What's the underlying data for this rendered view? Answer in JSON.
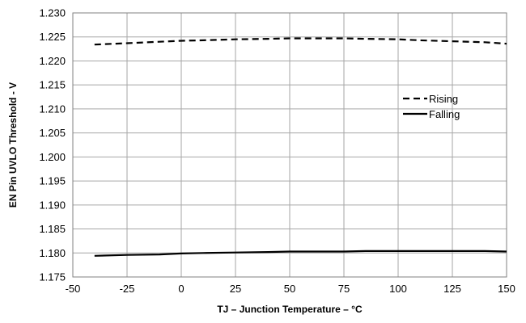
{
  "chart_data": {
    "type": "line",
    "title": "",
    "xlabel": "TJ – Junction Temperature – °C",
    "ylabel": "EN Pin UVLO Threshold - V",
    "xlim": [
      -50,
      150
    ],
    "ylim": [
      1.175,
      1.23
    ],
    "x_ticks": [
      "-50",
      "-25",
      "0",
      "25",
      "50",
      "75",
      "100",
      "125",
      "150"
    ],
    "y_ticks": [
      "1.175",
      "1.180",
      "1.185",
      "1.190",
      "1.195",
      "1.200",
      "1.205",
      "1.210",
      "1.215",
      "1.220",
      "1.225",
      "1.230"
    ],
    "grid": true,
    "legend_position": "right",
    "series": [
      {
        "name": "Rising",
        "style": "dashed",
        "color": "#000000",
        "x": [
          -40,
          -25,
          -10,
          0,
          10,
          25,
          40,
          50,
          60,
          75,
          85,
          100,
          110,
          125,
          140,
          150
        ],
        "y": [
          1.2234,
          1.2237,
          1.224,
          1.2242,
          1.2243,
          1.2245,
          1.2246,
          1.2247,
          1.2247,
          1.2247,
          1.2246,
          1.2245,
          1.2243,
          1.2241,
          1.2239,
          1.2236
        ]
      },
      {
        "name": "Falling",
        "style": "solid",
        "color": "#000000",
        "x": [
          -40,
          -25,
          -10,
          0,
          10,
          25,
          40,
          50,
          60,
          75,
          85,
          100,
          110,
          125,
          140,
          150
        ],
        "y": [
          1.1794,
          1.1796,
          1.1797,
          1.1799,
          1.18,
          1.1801,
          1.1802,
          1.1803,
          1.1803,
          1.1803,
          1.1804,
          1.1804,
          1.1804,
          1.1804,
          1.1804,
          1.1803
        ]
      }
    ]
  }
}
